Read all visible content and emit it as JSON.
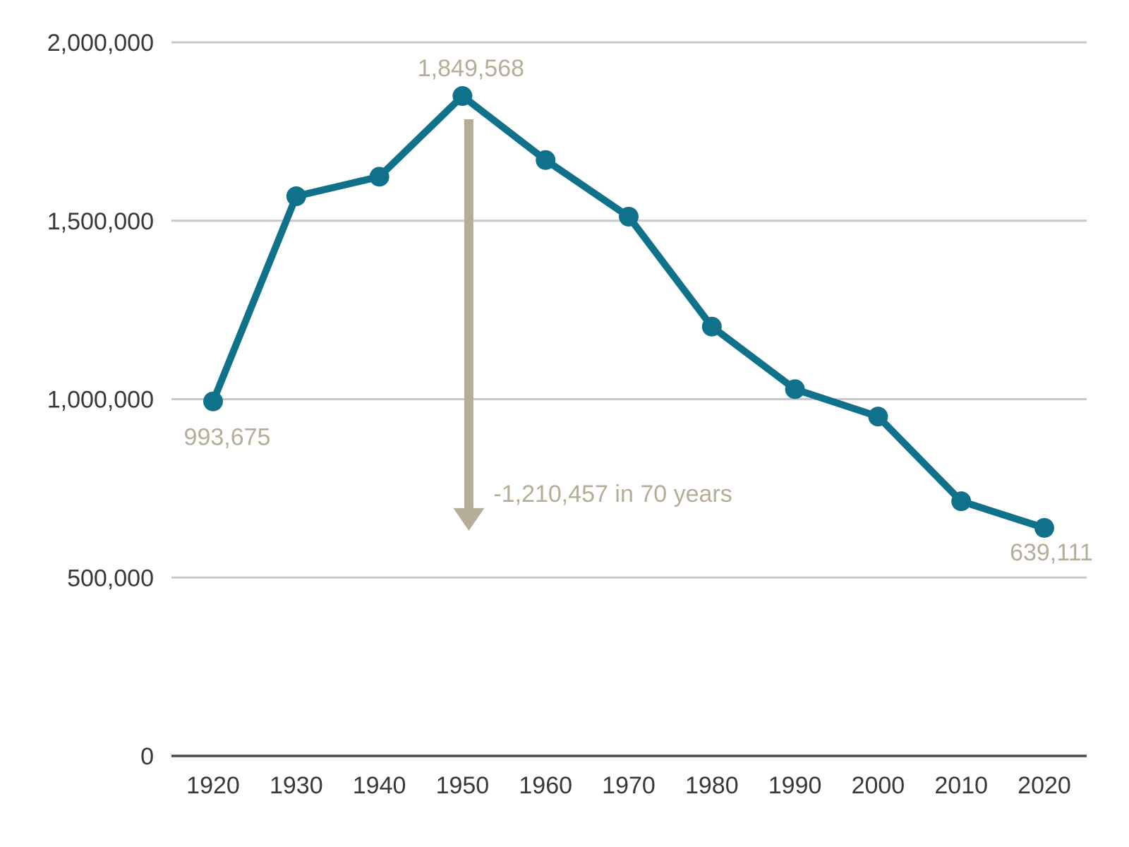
{
  "chart_data": {
    "type": "line",
    "title": "",
    "xlabel": "",
    "ylabel": "",
    "x": [
      "1920",
      "1930",
      "1940",
      "1950",
      "1960",
      "1970",
      "1980",
      "1990",
      "2000",
      "2010",
      "2020"
    ],
    "series": [
      {
        "name": "population",
        "values": [
          993675,
          1568662,
          1623452,
          1849568,
          1670144,
          1511482,
          1203339,
          1027974,
          951270,
          713777,
          639111
        ]
      }
    ],
    "ylim": [
      0,
      2000000
    ],
    "yticks": [
      {
        "value": 2000000,
        "label": "2,000,000"
      },
      {
        "value": 1500000,
        "label": "1,500,000"
      },
      {
        "value": 1000000,
        "label": "1,000,000"
      },
      {
        "value": 500000,
        "label": "500,000"
      },
      {
        "value": 0,
        "label": "0"
      }
    ],
    "grid": "horizontal-light-gray",
    "legend": "none",
    "annotations": {
      "first_point_label": "993,675",
      "peak_point_label": "1,849,568",
      "last_point_label": "639,111",
      "arrow_label": "-1,210,457 in 70 years"
    },
    "colors": {
      "line": "#10728a",
      "marker": "#10728a",
      "annotation": "#b5ad98",
      "arrow": "#b5ad98",
      "grid": "#c9c9c9",
      "axis": "#4a4a4a",
      "tick_text": "#383838"
    }
  }
}
